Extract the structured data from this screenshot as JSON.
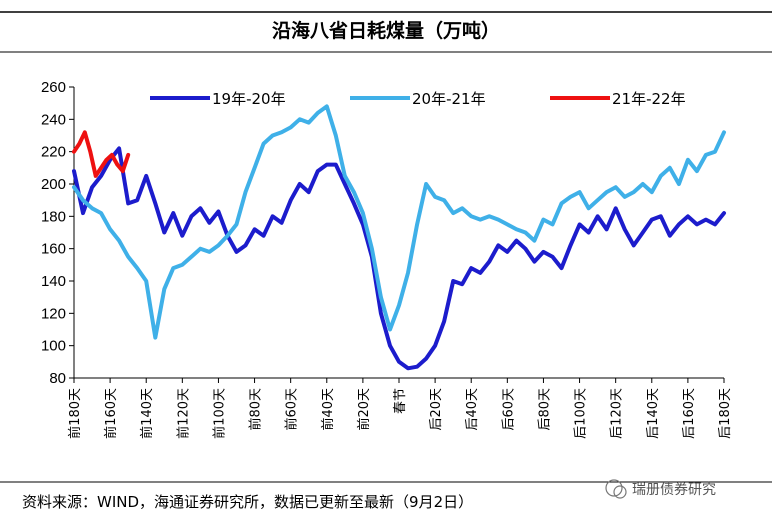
{
  "chart_data": {
    "type": "line",
    "title": "沿海八省日耗煤量（万吨）",
    "ylim": [
      80,
      260
    ],
    "yticks": [
      80,
      100,
      120,
      140,
      160,
      180,
      200,
      220,
      240,
      260
    ],
    "xticks": [
      "前180天",
      "前160天",
      "前140天",
      "前120天",
      "前100天",
      "前80天",
      "前60天",
      "前40天",
      "前20天",
      "春节",
      "后20天",
      "后40天",
      "后60天",
      "后80天",
      "后100天",
      "后120天",
      "后140天",
      "后160天",
      "后180天"
    ],
    "x_range": [
      -180,
      180
    ],
    "legend_position": "top",
    "series": [
      {
        "name": "19年-20年",
        "color": "#1c1ccc",
        "x": [
          -180,
          -175,
          -170,
          -165,
          -160,
          -155,
          -150,
          -145,
          -140,
          -135,
          -130,
          -125,
          -120,
          -115,
          -110,
          -105,
          -100,
          -95,
          -90,
          -85,
          -80,
          -75,
          -70,
          -65,
          -60,
          -55,
          -50,
          -45,
          -40,
          -35,
          -30,
          -25,
          -20,
          -15,
          -10,
          -5,
          0,
          5,
          10,
          15,
          20,
          25,
          30,
          35,
          40,
          45,
          50,
          55,
          60,
          65,
          70,
          75,
          80,
          85,
          90,
          95,
          100,
          105,
          110,
          115,
          120,
          125,
          130,
          135,
          140,
          145,
          150,
          155,
          160,
          165,
          170,
          175,
          180
        ],
        "values": [
          208,
          182,
          198,
          205,
          215,
          222,
          188,
          190,
          205,
          188,
          170,
          182,
          168,
          180,
          185,
          176,
          183,
          168,
          158,
          162,
          172,
          168,
          180,
          176,
          190,
          200,
          195,
          208,
          212,
          212,
          200,
          188,
          175,
          155,
          120,
          100,
          90,
          86,
          87,
          92,
          100,
          115,
          140,
          138,
          148,
          145,
          152,
          162,
          158,
          165,
          160,
          152,
          158,
          155,
          148,
          162,
          175,
          170,
          180,
          172,
          185,
          172,
          162,
          170,
          178,
          180,
          168,
          175,
          180,
          175,
          178,
          175,
          182
        ]
      },
      {
        "name": "20年-21年",
        "color": "#3fb0e8",
        "x": [
          -180,
          -175,
          -170,
          -165,
          -160,
          -155,
          -150,
          -145,
          -140,
          -135,
          -130,
          -125,
          -120,
          -115,
          -110,
          -105,
          -100,
          -95,
          -90,
          -85,
          -80,
          -75,
          -70,
          -65,
          -60,
          -55,
          -50,
          -45,
          -40,
          -35,
          -30,
          -25,
          -20,
          -15,
          -10,
          -5,
          0,
          5,
          10,
          15,
          20,
          25,
          30,
          35,
          40,
          45,
          50,
          55,
          60,
          65,
          70,
          75,
          80,
          85,
          90,
          95,
          100,
          105,
          110,
          115,
          120,
          125,
          130,
          135,
          140,
          145,
          150,
          155,
          160,
          165,
          170,
          175,
          180
        ],
        "values": [
          198,
          190,
          185,
          182,
          172,
          165,
          155,
          148,
          140,
          105,
          135,
          148,
          150,
          155,
          160,
          158,
          162,
          168,
          175,
          195,
          210,
          225,
          230,
          232,
          235,
          240,
          238,
          244,
          248,
          230,
          205,
          195,
          182,
          160,
          130,
          110,
          125,
          145,
          175,
          200,
          192,
          190,
          182,
          185,
          180,
          178,
          180,
          178,
          175,
          172,
          170,
          165,
          178,
          175,
          188,
          192,
          195,
          185,
          190,
          195,
          198,
          192,
          195,
          200,
          195,
          205,
          210,
          200,
          215,
          208,
          218,
          220,
          232
        ]
      },
      {
        "name": "21年-22年",
        "color": "#ee1111",
        "x": [
          -180,
          -177,
          -174,
          -171,
          -168,
          -165,
          -162,
          -159,
          -156,
          -153,
          -150
        ],
        "values": [
          220,
          225,
          232,
          220,
          205,
          210,
          215,
          218,
          212,
          208,
          218
        ]
      }
    ]
  },
  "source": "资料来源：WIND，海通证券研究所，数据已更新至最新（9月2日）",
  "watermark": "瑞册债券研究"
}
